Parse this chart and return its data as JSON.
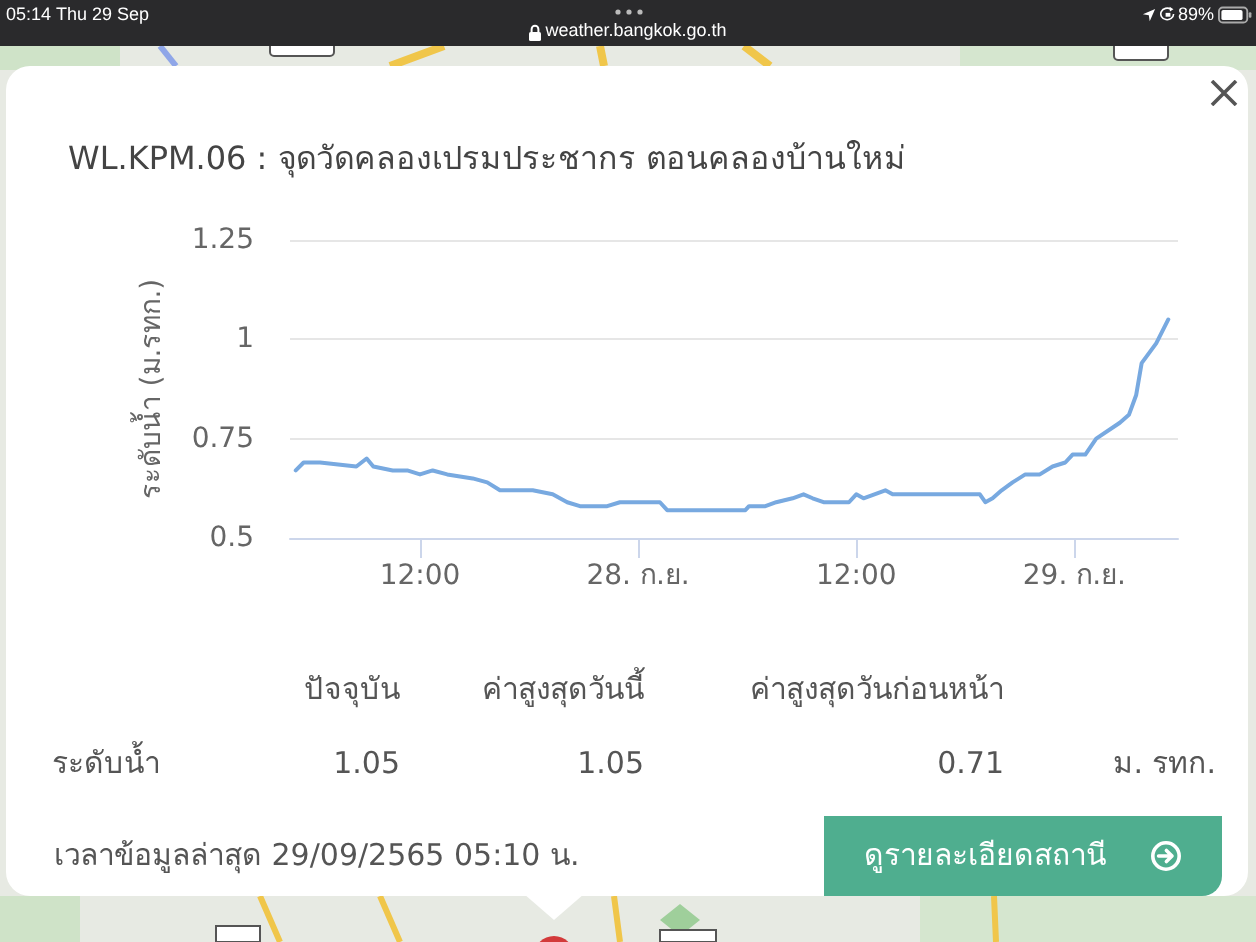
{
  "chart_data": {
    "type": "line",
    "title": "WL.KPM.06 : จุดวัดคลองเปรมประชากร ตอนคลองบ้านใหม่",
    "ylabel": "ระดับน้ำ (ม.รทก.)",
    "x": [
      "--09-27T05:10",
      "--09-27T05:36",
      "--09-27T06:30",
      "--09-27T08:30",
      "--09-27T09:04",
      "--09-27T09:26",
      "--09-27T10:30",
      "--09-27T11:18",
      "--09-27T12:00",
      "--09-27T12:42",
      "--09-27T13:30",
      "--09-27T14:54",
      "--09-27T15:42",
      "--09-27T16:24",
      "--09-27T17:30",
      "--09-27T18:12",
      "--09-27T19:18",
      "--09-27T20:06",
      "--09-27T20:48",
      "--09-27T22:18",
      "--09-27T23:00",
      "--09-28T01:12",
      "--09-28T01:36",
      "--09-28T04:18",
      "--09-28T04:30",
      "--09-28T05:54",
      "--09-28T06:06",
      "--09-28T07:00",
      "--09-28T07:36",
      "--09-28T08:30",
      "--09-28T09:06",
      "--09-28T09:36",
      "--09-28T10:12",
      "--09-28T11:36",
      "--09-28T12:00",
      "--09-28T12:24",
      "--09-28T13:36",
      "--09-28T14:00",
      "--09-28T15:48",
      "--09-28T18:48",
      "--09-28T19:06",
      "--09-28T19:30",
      "--09-28T20:00",
      "--09-28T20:36",
      "--09-28T21:18",
      "--09-28T22:06",
      "--09-28T22:48",
      "--09-28T23:30",
      "--09-28T23:54",
      "--09-29T00:36",
      "--09-29T01:12",
      "--09-29T02:30",
      "--09-29T03:00",
      "--09-29T03:24",
      "--09-29T03:42",
      "--09-29T04:30",
      "--09-29T05:10"
    ],
    "values": [
      0.67,
      0.69,
      0.69,
      0.68,
      0.7,
      0.68,
      0.67,
      0.67,
      0.66,
      0.67,
      0.66,
      0.65,
      0.64,
      0.62,
      0.62,
      0.62,
      0.61,
      0.59,
      0.58,
      0.58,
      0.59,
      0.59,
      0.57,
      0.57,
      0.57,
      0.57,
      0.58,
      0.58,
      0.59,
      0.6,
      0.61,
      0.6,
      0.59,
      0.59,
      0.61,
      0.6,
      0.62,
      0.61,
      0.61,
      0.61,
      0.59,
      0.6,
      0.62,
      0.64,
      0.66,
      0.66,
      0.68,
      0.69,
      0.71,
      0.71,
      0.75,
      0.79,
      0.81,
      0.86,
      0.94,
      0.99,
      1.05
    ],
    "color": "#78a9e0",
    "marker": "none",
    "line_style": "solid",
    "grid": "y",
    "xlim": [
      "--09-27T04:51",
      "--09-29T05:42"
    ],
    "xticks": [
      {
        "value": "--09-27T12:00",
        "label": "12:00"
      },
      {
        "value": "--09-28",
        "label": "28. ก.ย."
      },
      {
        "value": "--09-28T12:00",
        "label": "12:00"
      },
      {
        "value": "--09-29",
        "label": "29. ก.ย."
      }
    ],
    "ylim": [
      0.5,
      1.25
    ],
    "yticks": [
      0.5,
      0.75,
      1,
      1.25
    ],
    "annotations": [
      "05:14",
      "Thu 29 Sep",
      "weather.bangkok.go.th",
      "89%",
      "ปัจจุบัน",
      "ค่าสูงสุดวันนี้",
      "ค่าสูงสุดวันก่อนหน้า",
      "ระดับน้ำ",
      "1.05",
      "1.05",
      "0.71",
      "ม. รทก.",
      "เวลาข้อมูลล่าสุด 29/09/2565 05:10 น.",
      "ดูรายละเอียดสถานี"
    ]
  }
}
